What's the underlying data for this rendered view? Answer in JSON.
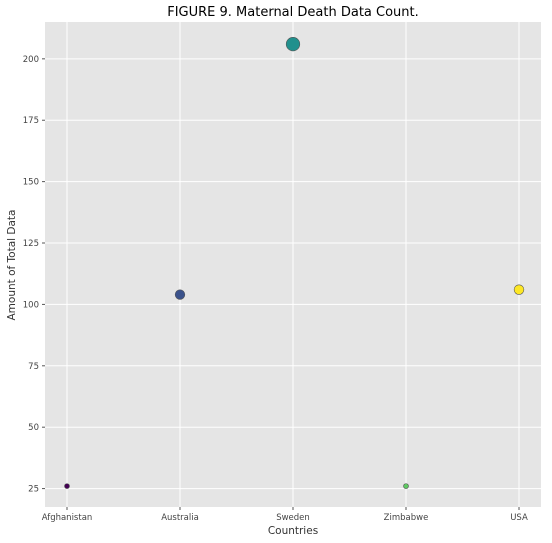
{
  "chart_data": {
    "type": "scatter",
    "title": "FIGURE 9. Maternal Death Data Count.",
    "xlabel": "Countries",
    "ylabel": "Amount of Total Data",
    "categories": [
      "Afghanistan",
      "Australia",
      "Sweden",
      "Zimbabwe",
      "USA"
    ],
    "values": [
      26,
      104,
      206,
      26,
      106
    ],
    "ylim": [
      17.5,
      215
    ],
    "yticks": [
      25,
      50,
      75,
      100,
      125,
      150,
      175,
      200
    ],
    "grid": true,
    "colors": [
      "#440154",
      "#3b528b",
      "#21908d",
      "#5ec962",
      "#fde725"
    ]
  }
}
